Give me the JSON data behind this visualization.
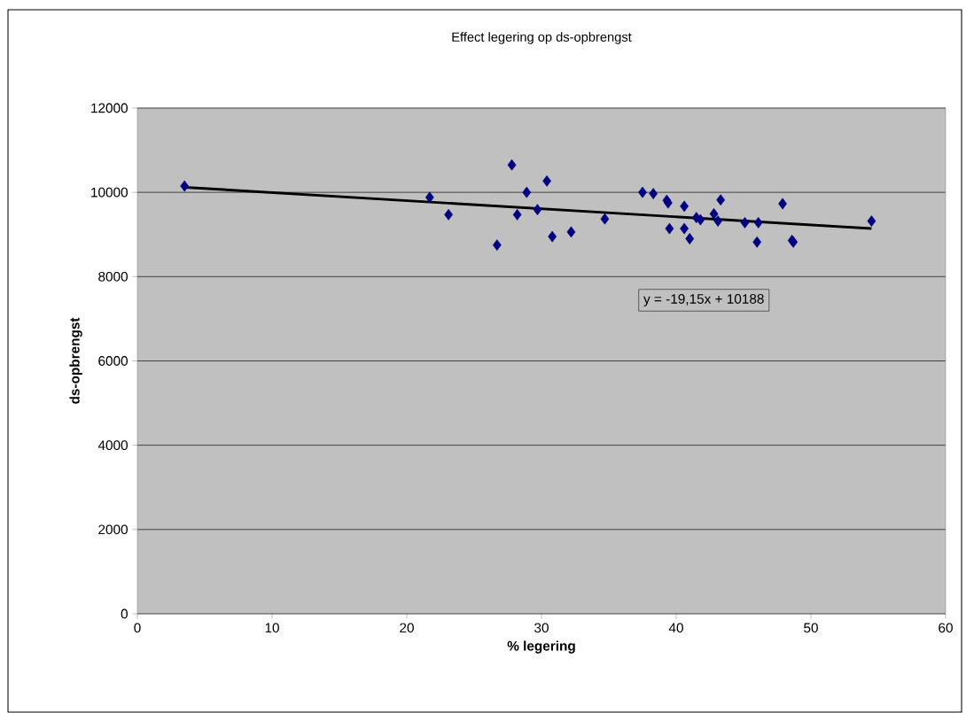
{
  "chart_data": {
    "type": "scatter",
    "title": "Effect legering op ds-opbrengst",
    "xlabel": "% legering",
    "ylabel": "ds-opbrengst",
    "annotations": [
      "y = -19,15x + 10188"
    ],
    "series": [
      {
        "color": "#000080",
        "marker": "diamond",
        "x": [
          3.5,
          21.7,
          23.1,
          26.7,
          27.8,
          28.2,
          28.9,
          29.7,
          30.4,
          30.8,
          32.2,
          34.7,
          37.5,
          38.3,
          39.3,
          39.4,
          39.5,
          40.6,
          40.6,
          41.0,
          41.5,
          41.8,
          42.8,
          43.1,
          43.3,
          45.1,
          46.0,
          46.1,
          47.9,
          48.6,
          48.7,
          54.5
        ],
        "values": [
          10150,
          9880,
          9470,
          8750,
          10650,
          9470,
          10000,
          9590,
          10270,
          8950,
          9060,
          9370,
          10000,
          9970,
          9810,
          9750,
          9140,
          9670,
          9140,
          8900,
          9400,
          9350,
          9490,
          9320,
          9820,
          9280,
          8820,
          9280,
          9730,
          8860,
          8820,
          9320
        ]
      },
      {
        "type": "line",
        "color": "#000000",
        "marker": "none",
        "line_style": "solid",
        "x": [
          3.5,
          54.5
        ],
        "values": [
          10120,
          9140
        ]
      }
    ],
    "xlim": [
      0,
      60
    ],
    "xticks": [
      0,
      10,
      20,
      30,
      40,
      50,
      60
    ],
    "ylim": [
      0,
      12000
    ],
    "yticks": [
      0,
      2000,
      4000,
      6000,
      8000,
      10000,
      12000
    ],
    "grid": "y"
  }
}
